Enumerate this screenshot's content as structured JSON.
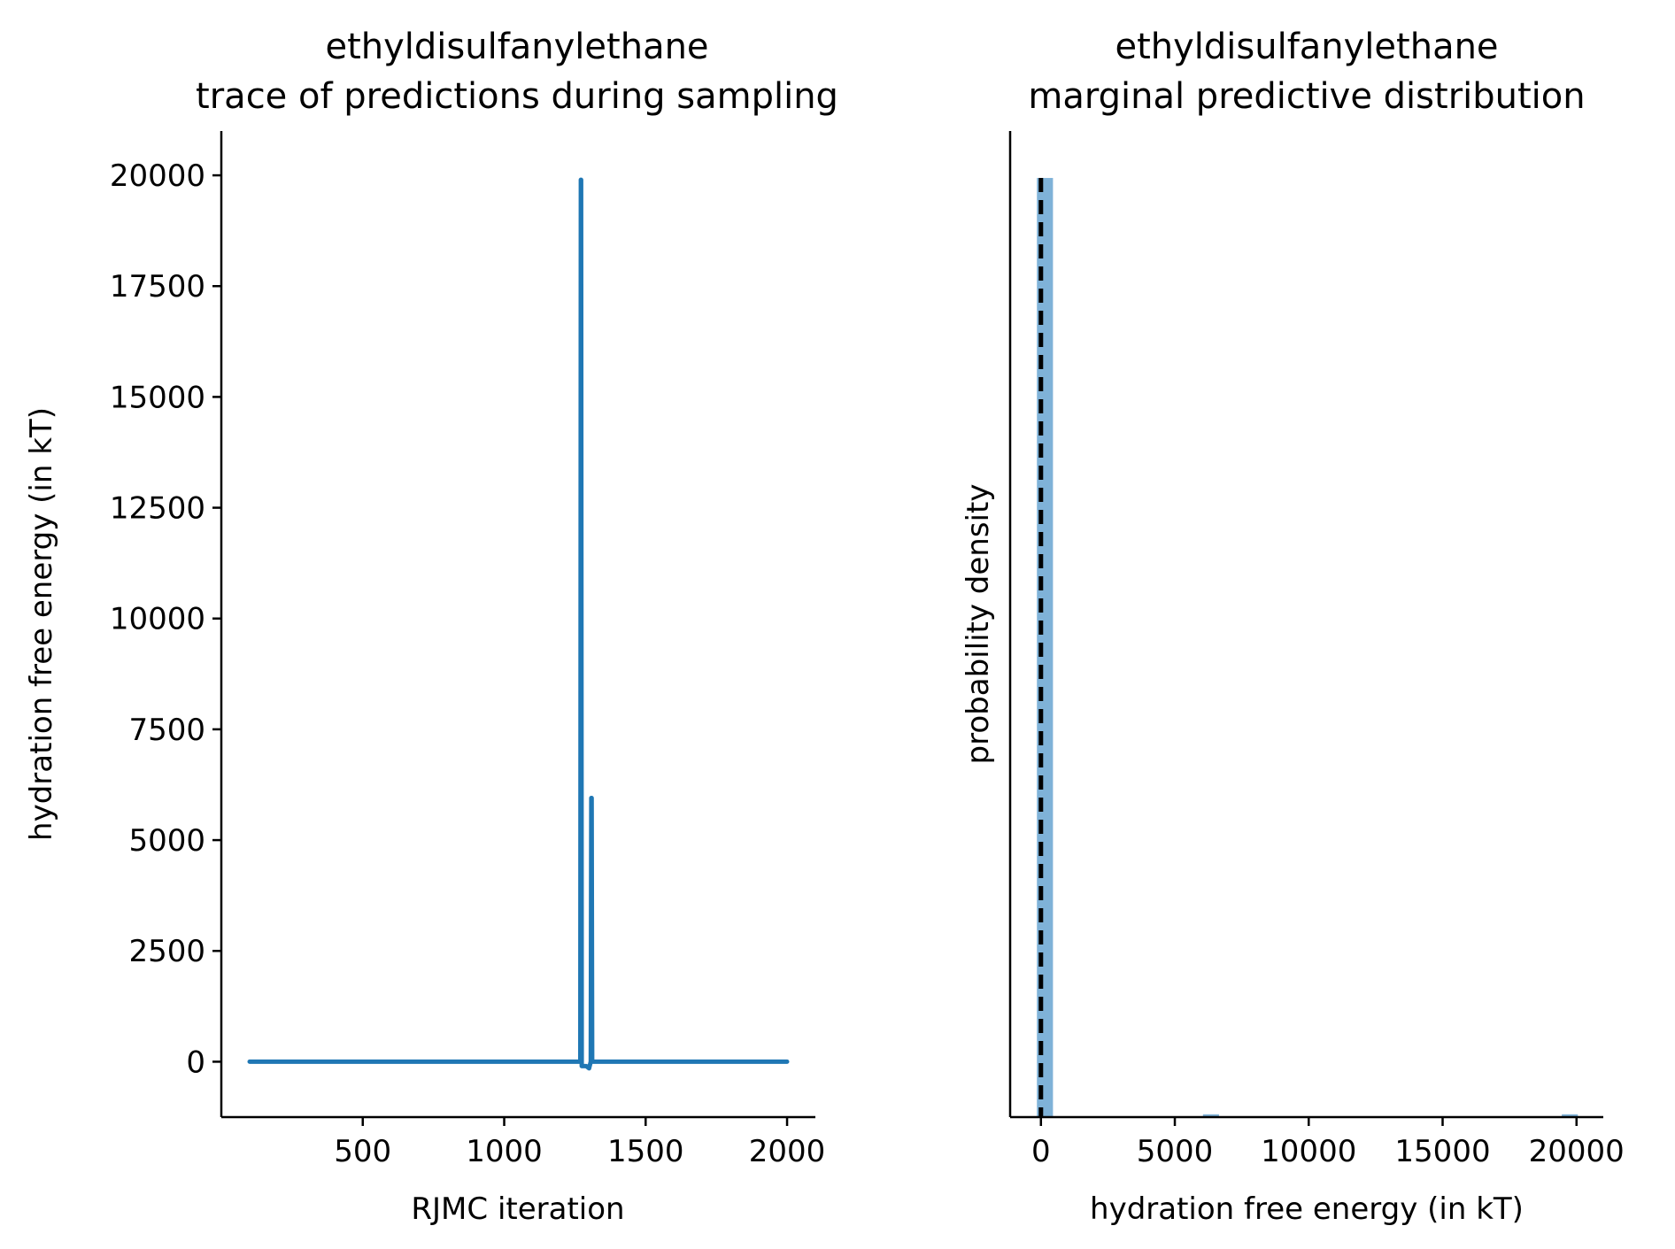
{
  "colors": {
    "line": "#1f77b4",
    "bar": "#7fb2d8",
    "ref": "#000000",
    "axis": "#000000"
  },
  "chart_data": [
    {
      "type": "line",
      "title": "ethyldisulfanylethane\ntrace of predictions during sampling",
      "title_lines": [
        "ethyldisulfanylethane",
        "trace of predictions during sampling"
      ],
      "xlabel": "RJMC iteration",
      "ylabel": "hydration free energy (in kT)",
      "xlim": [
        0,
        2100
      ],
      "ylim": [
        -1250,
        21000
      ],
      "xticks": [
        500,
        1000,
        1500,
        2000
      ],
      "xtick_labels": [
        "500",
        "1000",
        "1500",
        "2000"
      ],
      "yticks": [
        0,
        2500,
        5000,
        7500,
        10000,
        12500,
        15000,
        17500,
        20000
      ],
      "ytick_labels": [
        "0",
        "2500",
        "5000",
        "7500",
        "10000",
        "12500",
        "15000",
        "17500",
        "20000"
      ],
      "grid": false,
      "series": [
        {
          "x": [
            100,
            500,
            1000,
            1269,
            1271,
            1272,
            1274,
            1290,
            1300,
            1306,
            1308,
            1309,
            1311,
            1320,
            1500,
            2000
          ],
          "y": [
            0,
            0,
            0,
            0,
            19900,
            19900,
            -100,
            -100,
            -150,
            0,
            5950,
            5950,
            0,
            0,
            0,
            0
          ]
        }
      ]
    },
    {
      "type": "bar",
      "title": "ethyldisulfanylethane\nmarginal predictive distribution",
      "title_lines": [
        "ethyldisulfanylethane",
        "marginal predictive distribution"
      ],
      "xlabel": "hydration free energy (in kT)",
      "ylabel": "probability density",
      "xlim": [
        -1150,
        21000
      ],
      "ylim": [
        0,
        1.05
      ],
      "xticks": [
        0,
        5000,
        10000,
        15000,
        20000
      ],
      "xtick_labels": [
        "0",
        "5000",
        "10000",
        "15000",
        "20000"
      ],
      "grid": false,
      "bins": [
        {
          "x0": -150,
          "x1": 450,
          "density": 1.0
        },
        {
          "x0": 6050,
          "x1": 6650,
          "density": 0.003
        },
        {
          "x0": 19450,
          "x1": 20050,
          "density": 0.003
        }
      ],
      "reference_line": {
        "x": 0,
        "style": "dashed"
      }
    }
  ]
}
